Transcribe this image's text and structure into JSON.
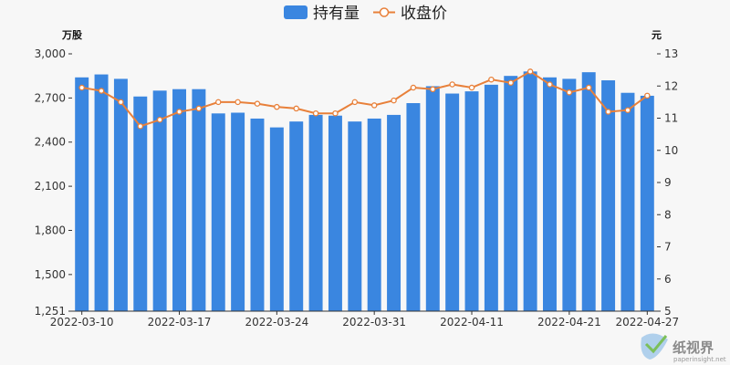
{
  "chart_data": {
    "type": "bar",
    "legend": {
      "position": "top-center",
      "items": [
        "持有量",
        "收盘价"
      ]
    },
    "y_left": {
      "unit": "万股",
      "min": 1251,
      "max": 3000,
      "ticks": [
        "1,251",
        "1,500",
        "1,800",
        "2,100",
        "2,400",
        "2,700",
        "3,000"
      ]
    },
    "y_right": {
      "unit": "元",
      "min": 5,
      "max": 13,
      "ticks": [
        "5",
        "6",
        "7",
        "8",
        "9",
        "10",
        "11",
        "12",
        "13"
      ]
    },
    "x_tick_labels": [
      {
        "index": 0,
        "label": "2022-03-10"
      },
      {
        "index": 5,
        "label": "2022-03-17"
      },
      {
        "index": 10,
        "label": "2022-03-24"
      },
      {
        "index": 15,
        "label": "2022-03-31"
      },
      {
        "index": 20,
        "label": "2022-04-11"
      },
      {
        "index": 25,
        "label": "2022-04-21"
      },
      {
        "index": 29,
        "label": "2022-04-27"
      }
    ],
    "series": [
      {
        "name": "持有量",
        "type": "bar",
        "axis": "left",
        "color": "#3a86e0",
        "values": [
          2840,
          2860,
          2830,
          2710,
          2750,
          2760,
          2760,
          2595,
          2600,
          2560,
          2500,
          2540,
          2585,
          2580,
          2540,
          2560,
          2585,
          2665,
          2780,
          2730,
          2745,
          2790,
          2850,
          2880,
          2840,
          2830,
          2875,
          2820,
          2735,
          2715
        ]
      },
      {
        "name": "收盘价",
        "type": "line",
        "axis": "right",
        "color": "#e8803a",
        "values": [
          11.95,
          11.85,
          11.5,
          10.75,
          10.95,
          11.2,
          11.3,
          11.5,
          11.5,
          11.45,
          11.35,
          11.3,
          11.15,
          11.15,
          11.5,
          11.4,
          11.55,
          11.95,
          11.9,
          12.05,
          11.95,
          12.2,
          12.1,
          12.45,
          12.05,
          11.8,
          11.95,
          11.2,
          11.25,
          11.7
        ]
      }
    ]
  },
  "watermark": {
    "main": "纸视界",
    "sub": "paperinsight.net"
  }
}
